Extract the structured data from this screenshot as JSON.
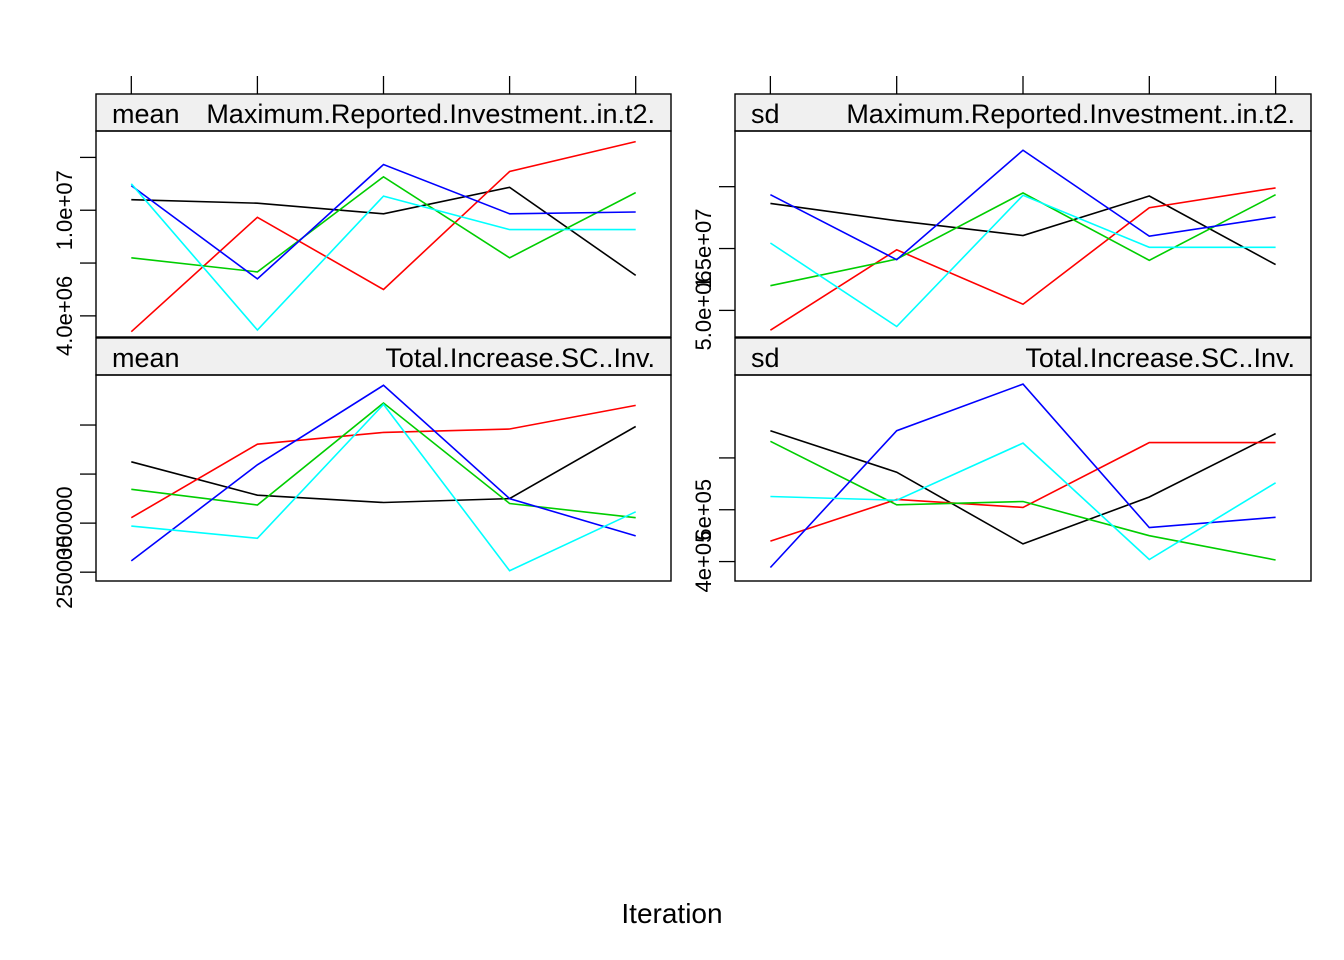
{
  "xlabel": "Iteration",
  "x": [
    1,
    2,
    3,
    4,
    5
  ],
  "colors": [
    "#000000",
    "#ff0000",
    "#00cd00",
    "#0000ff",
    "#00ffff"
  ],
  "chart_data": [
    {
      "type": "line",
      "stat": "mean",
      "variable": "Maximum.Reported.Investment..in.t2.",
      "yticks": [
        "4.0e+06",
        "",
        "1.0e+07",
        ""
      ],
      "tickvals": [
        4000000,
        7000000,
        10000000,
        13000000
      ],
      "ylim": [
        2800000,
        14500000
      ],
      "series": [
        {
          "values": [
            10600000,
            10400000,
            9800000,
            11300000,
            6300000
          ]
        },
        {
          "values": [
            3100000,
            9600000,
            5500000,
            12200000,
            13900000
          ]
        },
        {
          "values": [
            7300000,
            6500000,
            11900000,
            7300000,
            11000000
          ]
        },
        {
          "values": [
            11400000,
            6100000,
            12600000,
            9800000,
            9900000
          ]
        },
        {
          "values": [
            11500000,
            3200000,
            10800000,
            8900000,
            8900000
          ]
        }
      ]
    },
    {
      "type": "line",
      "stat": "sd",
      "variable": "Maximum.Reported.Investment..in.t2.",
      "yticks": [
        "5.0e+06",
        "1.5e+07",
        ""
      ],
      "tickvals": [
        5000000,
        15000000,
        25000000
      ],
      "ylim": [
        700000,
        34000000
      ],
      "series": [
        {
          "values": [
            22300000,
            19500000,
            17100000,
            23500000,
            12400000
          ]
        },
        {
          "values": [
            1800000,
            14800000,
            6000000,
            21600000,
            24800000
          ]
        },
        {
          "values": [
            9000000,
            13300000,
            24000000,
            13100000,
            23700000
          ]
        },
        {
          "values": [
            23700000,
            13200000,
            30900000,
            17000000,
            20100000
          ]
        },
        {
          "values": [
            15900000,
            2400000,
            23600000,
            15200000,
            15200000
          ]
        }
      ]
    },
    {
      "type": "line",
      "stat": "mean",
      "variable": "Total.Increase.SC..Inv.",
      "yticks": [
        "250000",
        "350000",
        "",
        ""
      ],
      "tickvals": [
        250000,
        350000,
        450000,
        550000
      ],
      "ylim": [
        232000,
        652000
      ],
      "series": [
        {
          "values": [
            475000,
            407000,
            392000,
            400000,
            547000
          ]
        },
        {
          "values": [
            361000,
            511000,
            535000,
            542000,
            590000
          ]
        },
        {
          "values": [
            419000,
            387000,
            595000,
            390000,
            361000
          ]
        },
        {
          "values": [
            273000,
            469000,
            631000,
            400000,
            324000
          ]
        },
        {
          "values": [
            344000,
            319000,
            592000,
            253000,
            373000
          ]
        }
      ]
    },
    {
      "type": "line",
      "stat": "sd",
      "variable": "Total.Increase.SC..Inv.",
      "yticks": [
        "4e+05",
        "6e+05",
        ""
      ],
      "tickvals": [
        400000,
        600000,
        800000
      ],
      "ylim": [
        325000,
        1120000
      ],
      "series": [
        {
          "values": [
            905000,
            745000,
            468000,
            649000,
            894000
          ]
        },
        {
          "values": [
            479000,
            640000,
            609000,
            859000,
            859000
          ]
        },
        {
          "values": [
            864000,
            619000,
            632000,
            500000,
            406000
          ]
        },
        {
          "values": [
            377000,
            905000,
            1085000,
            531000,
            571000
          ]
        },
        {
          "values": [
            651000,
            637000,
            857000,
            408000,
            704000
          ]
        }
      ]
    }
  ]
}
